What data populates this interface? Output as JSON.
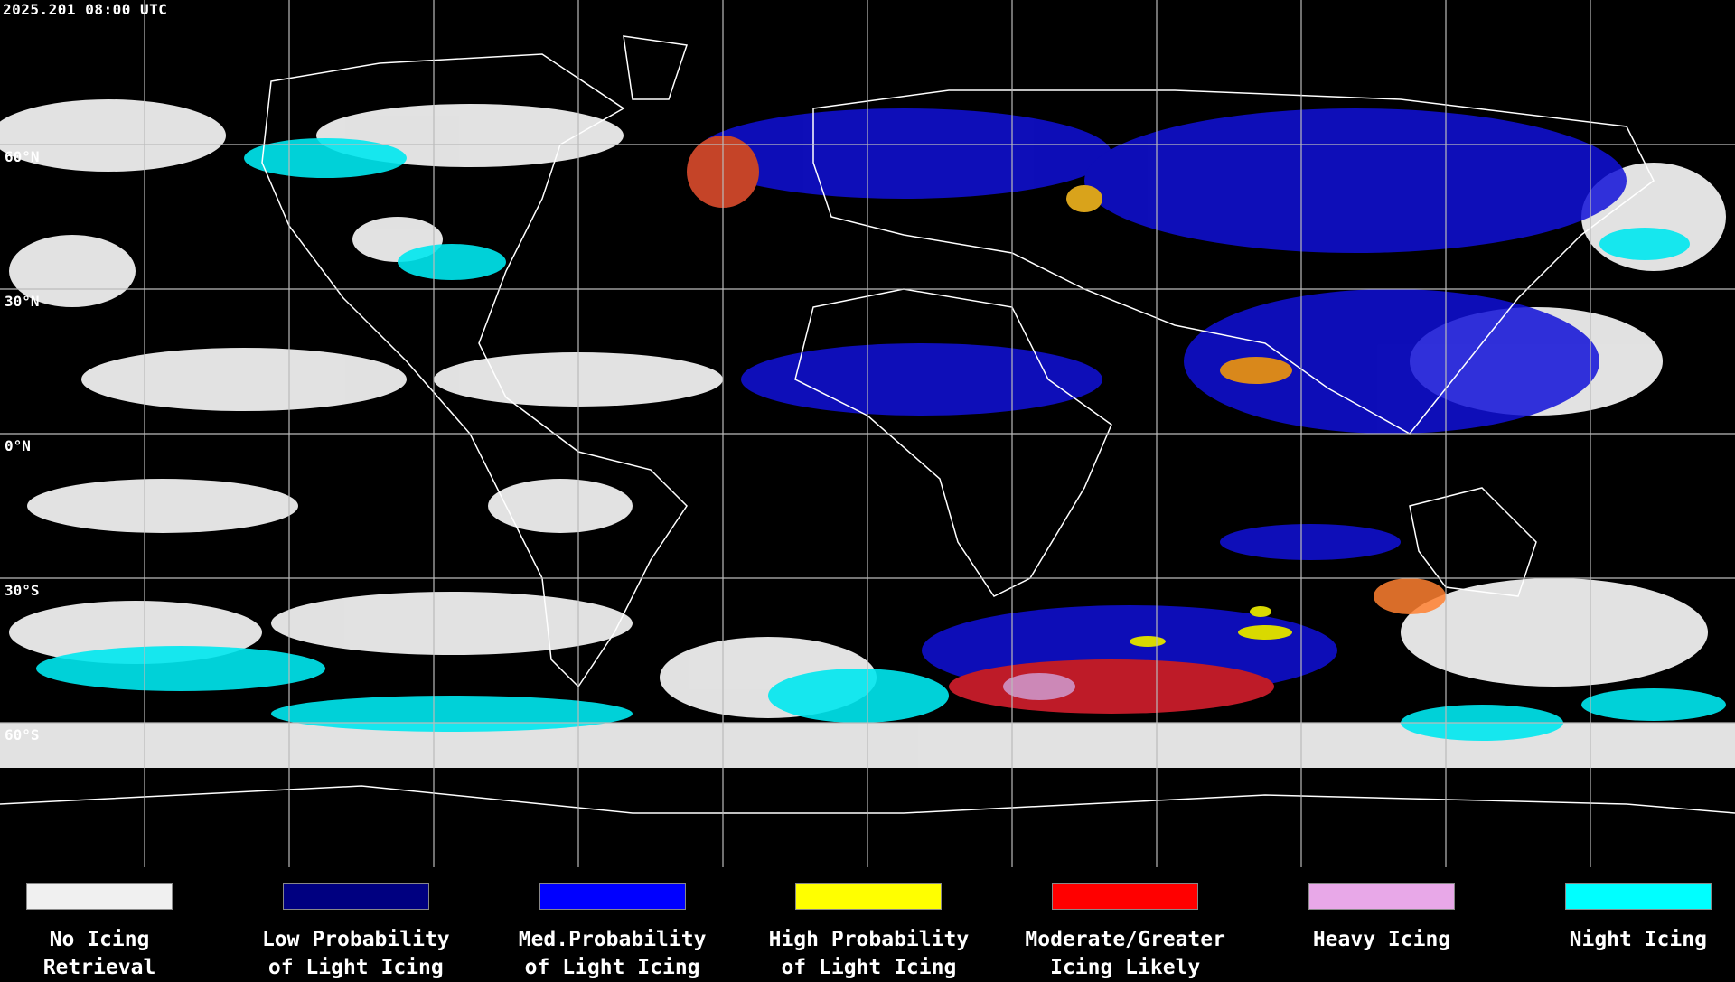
{
  "timestamp": "2025.201 08:00 UTC",
  "latitude_labels": [
    "60°N",
    "30°N",
    "0°N",
    "30°S",
    "60°S"
  ],
  "legend": [
    {
      "lines": [
        "No Icing",
        "Retrieval"
      ],
      "color": "#f0f0f0"
    },
    {
      "lines": [
        "Low Probability",
        "of Light Icing"
      ],
      "color": "#000080"
    },
    {
      "lines": [
        "Med.Probability",
        "of Light Icing"
      ],
      "color": "#0000ff"
    },
    {
      "lines": [
        "High Probability",
        "of Light Icing"
      ],
      "color": "#ffff00"
    },
    {
      "lines": [
        "Moderate/Greater",
        "Icing Likely"
      ],
      "color": "#ff0000"
    },
    {
      "lines": [
        "Heavy Icing"
      ],
      "color": "#e8a8e8"
    },
    {
      "lines": [
        "Night Icing"
      ],
      "color": "#00ffff"
    }
  ]
}
